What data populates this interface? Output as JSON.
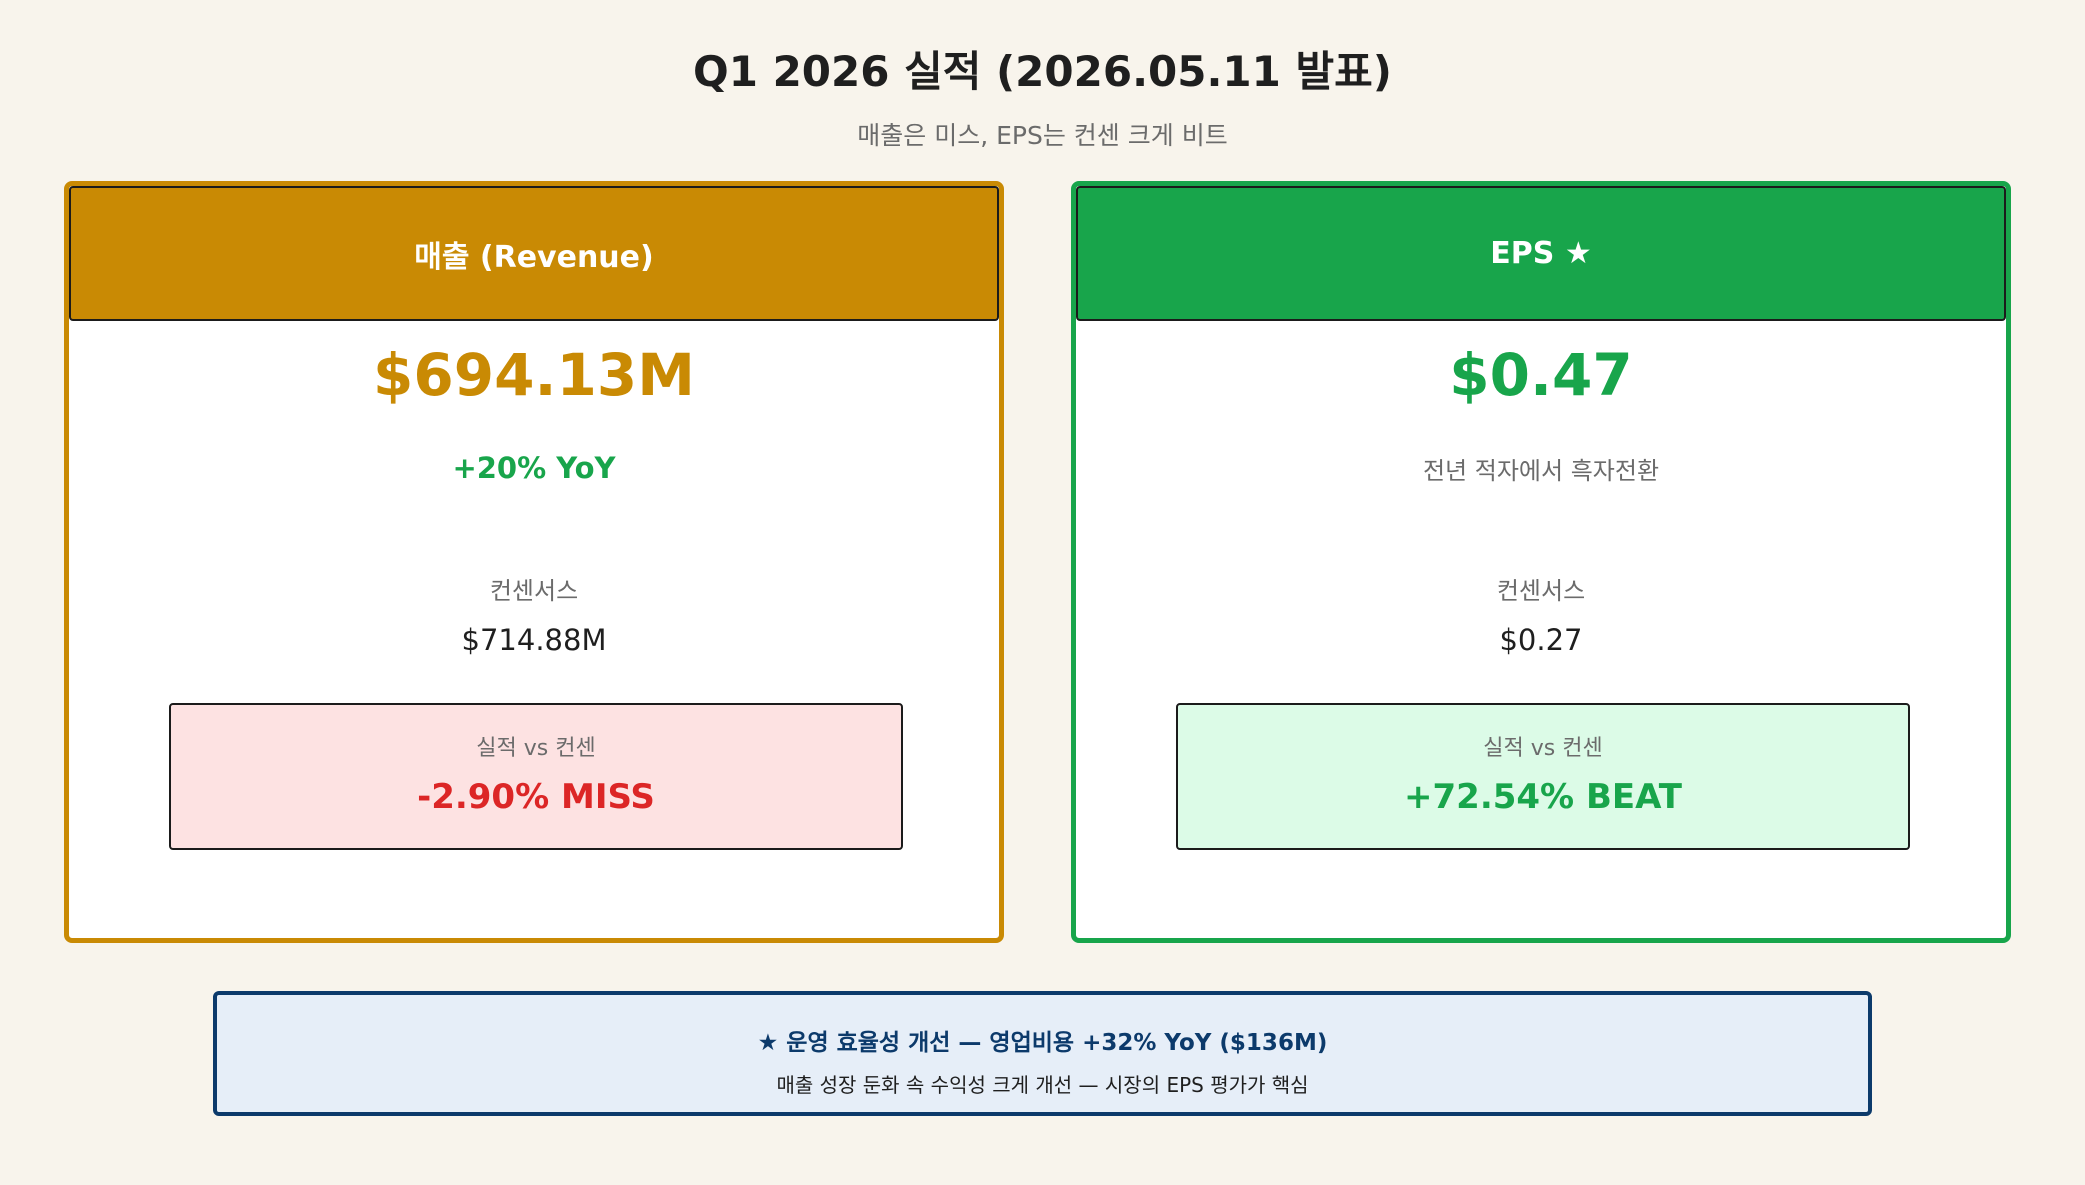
{
  "header": {
    "title": "Q1 2026 실적 (2026.05.11 발표)",
    "subtitle": "매출은 미스, EPS는 컨센 크게 비트"
  },
  "revenue_card": {
    "header_label": "매출 (Revenue)",
    "value": "$694.13M",
    "note": "+20% YoY",
    "consensus_label": "컨센서스",
    "consensus_value": "$714.88M",
    "compare_label": "실적 vs 컨센",
    "compare_value": "-2.90% MISS"
  },
  "eps_card": {
    "header_label": "EPS ★",
    "value": "$0.47",
    "note": "전년 적자에서 흑자전환",
    "consensus_label": "컨센서스",
    "consensus_value": "$0.27",
    "compare_label": "실적 vs 컨센",
    "compare_value": "+72.54% BEAT"
  },
  "footer": {
    "title": "★ 운영 효율성 개선 — 영업비용 +32% YoY ($136M)",
    "text": "매출 성장 둔화 속 수익성 크게 개선 — 시장의 EPS 평가가 핵심"
  },
  "colors": {
    "revenue_accent": "#c98a04",
    "eps_accent": "#18a54b",
    "miss_red": "#dc2626",
    "footer_navy": "#0c3a6b"
  }
}
